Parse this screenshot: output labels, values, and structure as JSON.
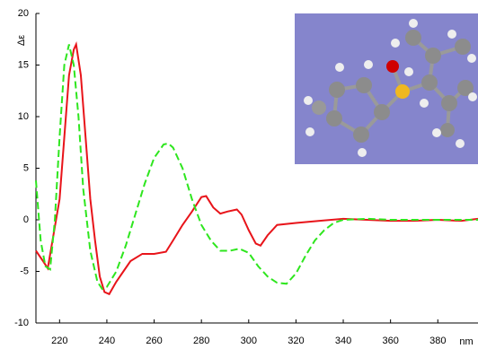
{
  "chart_data": {
    "type": "line",
    "y_label": "Δε",
    "x_label": "nm",
    "xlim": [
      210,
      397
    ],
    "ylim": [
      -10,
      20
    ],
    "xticks": [
      220,
      240,
      260,
      280,
      300,
      320,
      340,
      360,
      380
    ],
    "yticks": [
      -10,
      -5,
      0,
      5,
      10,
      15,
      20
    ],
    "series": [
      {
        "color": "#e8141a",
        "dash": "solid",
        "x": [
          210,
          213,
          215,
          220,
          222,
          224,
          226,
          227,
          229,
          231,
          233,
          235,
          237,
          239,
          241,
          244,
          247,
          250,
          255,
          260,
          265,
          268,
          272,
          276,
          280,
          282,
          285,
          288,
          291,
          295,
          297,
          300,
          303,
          305,
          308,
          312,
          320,
          330,
          340,
          350,
          360,
          370,
          380,
          390,
          397
        ],
        "values": [
          -3,
          -4,
          -4.7,
          2,
          8,
          14,
          16.5,
          17,
          14,
          8,
          2,
          -2,
          -5.5,
          -7,
          -7.2,
          -6,
          -5,
          -4,
          -3.3,
          -3.3,
          -3.1,
          -2,
          -0.5,
          0.8,
          2.2,
          2.3,
          1.2,
          0.6,
          0.8,
          1,
          0.5,
          -1,
          -2.3,
          -2.5,
          -1.5,
          -0.5,
          -0.3,
          -0.1,
          0.1,
          0,
          -0.1,
          -0.1,
          0,
          -0.1,
          0.1
        ]
      },
      {
        "color": "#2ee61e",
        "dash": "dashed",
        "x": [
          210,
          212,
          214,
          216,
          218,
          220,
          222,
          224,
          226,
          228,
          230,
          233,
          236,
          238,
          240,
          244,
          248,
          252,
          256,
          260,
          264,
          266,
          268,
          272,
          276,
          280,
          284,
          288,
          292,
          296,
          300,
          304,
          308,
          312,
          316,
          320,
          324,
          328,
          332,
          336,
          340,
          350,
          360,
          380,
          397
        ],
        "values": [
          3.8,
          -2,
          -4.5,
          -4.8,
          0,
          8,
          15,
          17,
          15,
          10,
          3,
          -3,
          -6,
          -6.7,
          -6.5,
          -5,
          -2.5,
          0.5,
          3.5,
          6,
          7.3,
          7.4,
          7,
          5,
          2,
          -0.5,
          -2,
          -3,
          -3,
          -2.8,
          -3.2,
          -4.5,
          -5.5,
          -6.1,
          -6.2,
          -5.2,
          -3.5,
          -2,
          -1,
          -0.3,
          0,
          0.1,
          0,
          0,
          0
        ]
      }
    ]
  }
}
